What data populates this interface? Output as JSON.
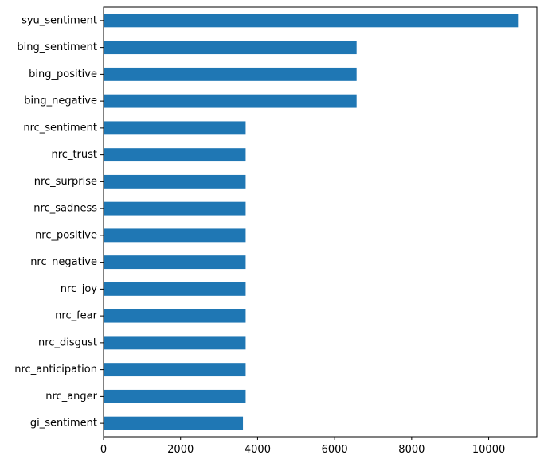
{
  "chart_data": {
    "type": "bar",
    "orientation": "horizontal",
    "title": "",
    "xlabel": "",
    "ylabel": "",
    "bar_color": "#1f77b4",
    "grid": false,
    "legend": "none",
    "xlim": [
      0,
      11250
    ],
    "xticks": [
      0,
      2000,
      4000,
      6000,
      8000,
      10000
    ],
    "xtick_labels": [
      "0",
      "2000",
      "4000",
      "6000",
      "8000",
      "10000"
    ],
    "categories": [
      "syu_sentiment",
      "bing_sentiment",
      "bing_positive",
      "bing_negative",
      "nrc_sentiment",
      "nrc_trust",
      "nrc_surprise",
      "nrc_sadness",
      "nrc_positive",
      "nrc_negative",
      "nrc_joy",
      "nrc_fear",
      "nrc_disgust",
      "nrc_anticipation",
      "nrc_anger",
      "gi_sentiment"
    ],
    "values": [
      10760,
      6570,
      6570,
      6570,
      3690,
      3690,
      3690,
      3690,
      3690,
      3690,
      3690,
      3690,
      3690,
      3690,
      3690,
      3620
    ]
  }
}
